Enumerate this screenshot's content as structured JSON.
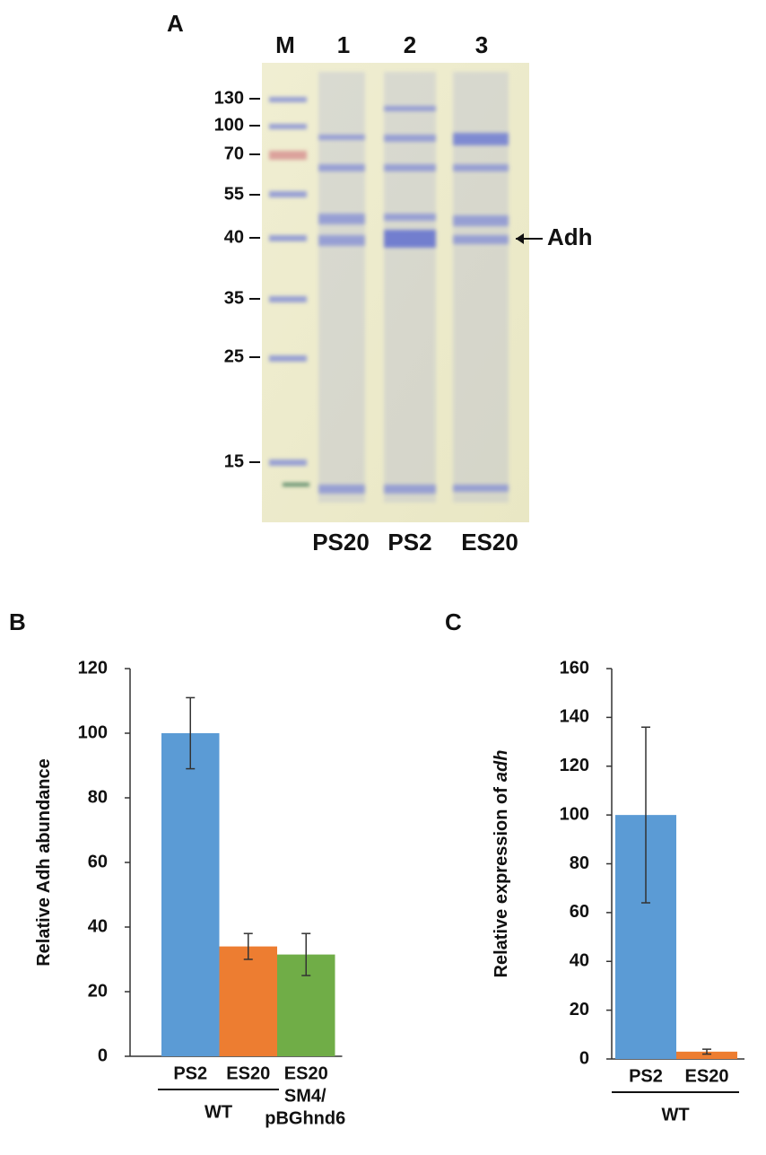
{
  "panels": {
    "a": "A",
    "b": "B",
    "c": "C"
  },
  "gel": {
    "lanes": [
      "M",
      "1",
      "2",
      "3"
    ],
    "markers": [
      "130",
      "100",
      "70",
      "55",
      "40",
      "35",
      "25",
      "15"
    ],
    "arrow_label": "Adh",
    "samples": [
      "PS20",
      "PS2",
      "ES20"
    ]
  },
  "chart_data": [
    {
      "type": "bar",
      "ylabel": [
        "Relative Adh abundance"
      ],
      "categories": [
        "PS2",
        "ES20",
        "ES20"
      ],
      "values": [
        100,
        34,
        31.5
      ],
      "errors": [
        11,
        4,
        6.5
      ],
      "colors": [
        "#5b9bd5",
        "#ed7d31",
        "#70ad47"
      ],
      "groups": [
        [
          "WT"
        ],
        [
          "SM4/",
          "pBGhnd6"
        ]
      ],
      "ylim": [
        0,
        120
      ],
      "yticks": [
        0,
        20,
        40,
        60,
        80,
        100,
        120
      ]
    },
    {
      "type": "bar",
      "ylabel": [
        "Relative expression of",
        "adh"
      ],
      "categories": [
        "PS2",
        "ES20"
      ],
      "values": [
        100,
        3
      ],
      "errors": [
        36,
        1
      ],
      "colors": [
        "#5b9bd5",
        "#ed7d31"
      ],
      "groups": [
        [
          "WT"
        ]
      ],
      "ylim": [
        0,
        160
      ],
      "yticks": [
        0,
        20,
        40,
        60,
        80,
        100,
        120,
        140,
        160
      ]
    }
  ]
}
